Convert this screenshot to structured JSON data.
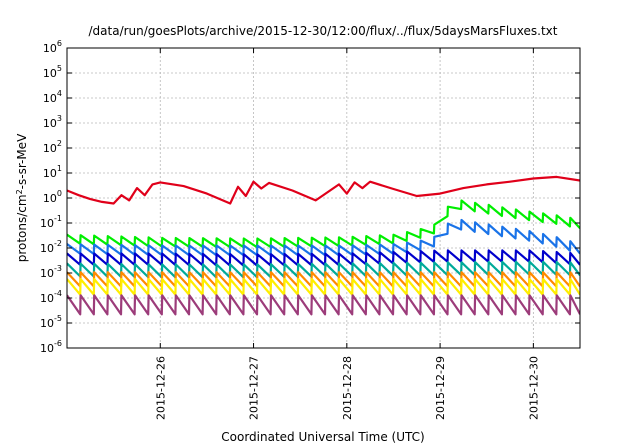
{
  "chart_data": {
    "type": "line",
    "title": "/data/run/goesPlots/archive/2015-12-30/12:00/flux/../flux/5daysMarsFluxes.txt",
    "xlabel": "Coordinated Universal Time (UTC)",
    "ylabel_parts": [
      "protons/cm",
      "2",
      "-s-sr-MeV"
    ],
    "y_scale": "log",
    "ylim": [
      1e-06,
      1000000.0
    ],
    "y_ticks": [
      {
        "base": "10",
        "exp": "-6",
        "value": 1e-06
      },
      {
        "base": "10",
        "exp": "-5",
        "value": 1e-05
      },
      {
        "base": "10",
        "exp": "-4",
        "value": 0.0001
      },
      {
        "base": "10",
        "exp": "-3",
        "value": 0.001
      },
      {
        "base": "10",
        "exp": "-2",
        "value": 0.01
      },
      {
        "base": "10",
        "exp": "-1",
        "value": 0.1
      },
      {
        "base": "10",
        "exp": "0",
        "value": 1
      },
      {
        "base": "10",
        "exp": "1",
        "value": 10
      },
      {
        "base": "10",
        "exp": "2",
        "value": 100
      },
      {
        "base": "10",
        "exp": "3",
        "value": 1000
      },
      {
        "base": "10",
        "exp": "4",
        "value": 10000
      },
      {
        "base": "10",
        "exp": "5",
        "value": 100000
      },
      {
        "base": "10",
        "exp": "6",
        "value": 1000000
      }
    ],
    "xlim": [
      "2015-12-25T00:00",
      "2015-12-30T12:00"
    ],
    "x_ticks": [
      "2015-12-26",
      "2015-12-27",
      "2015-12-28",
      "2015-12-29",
      "2015-12-30"
    ],
    "grid": true,
    "legend": "none",
    "series": [
      {
        "color": "#e0001a",
        "width": 2.2,
        "x": [
          "2015-12-25T00:00",
          "2015-12-25T03:00",
          "2015-12-25T06:00",
          "2015-12-25T09:00",
          "2015-12-25T12:00",
          "2015-12-25T14:00",
          "2015-12-25T16:00",
          "2015-12-25T18:00",
          "2015-12-25T20:00",
          "2015-12-25T22:00",
          "2015-12-26T00:00",
          "2015-12-26T06:00",
          "2015-12-26T12:00",
          "2015-12-26T18:00",
          "2015-12-26T20:00",
          "2015-12-26T22:00",
          "2015-12-27T00:00",
          "2015-12-27T02:00",
          "2015-12-27T04:00",
          "2015-12-27T10:00",
          "2015-12-27T16:00",
          "2015-12-27T22:00",
          "2015-12-28T00:00",
          "2015-12-28T02:00",
          "2015-12-28T04:00",
          "2015-12-28T06:00",
          "2015-12-28T12:00",
          "2015-12-28T18:00",
          "2015-12-29T00:00",
          "2015-12-29T06:00",
          "2015-12-29T12:00",
          "2015-12-29T18:00",
          "2015-12-30T00:00",
          "2015-12-30T06:00",
          "2015-12-30T12:00"
        ],
        "y": [
          2.0,
          1.3,
          0.9,
          0.7,
          0.6,
          1.3,
          0.8,
          2.5,
          1.3,
          3.5,
          4.2,
          3.0,
          1.5,
          0.6,
          2.8,
          1.2,
          4.5,
          2.4,
          4.0,
          2.0,
          0.8,
          3.5,
          1.5,
          4.2,
          2.5,
          4.5,
          2.3,
          1.2,
          1.5,
          2.5,
          3.5,
          4.5,
          6.0,
          7.0,
          5.0
        ]
      },
      {
        "color": "#00ee00",
        "width": 2.2,
        "x": [
          "2015-12-25T00:00",
          "2015-12-26T00:00",
          "2015-12-27T00:00",
          "2015-12-28T00:00",
          "2015-12-28T12:00",
          "2015-12-28T18:00",
          "2015-12-29T00:00",
          "2015-12-29T03:00",
          "2015-12-29T06:00",
          "2015-12-29T12:00",
          "2015-12-29T18:00",
          "2015-12-30T00:00",
          "2015-12-30T06:00",
          "2015-12-30T12:00"
        ],
        "y": [
          0.02,
          0.015,
          0.014,
          0.016,
          0.02,
          0.03,
          0.06,
          0.55,
          0.45,
          0.32,
          0.22,
          0.16,
          0.12,
          0.08
        ],
        "amp": 1.7,
        "period_h": 3.5
      },
      {
        "color": "#1a73e8",
        "width": 2.2,
        "x": [
          "2015-12-25T00:00",
          "2015-12-26T00:00",
          "2015-12-27T00:00",
          "2015-12-28T00:00",
          "2015-12-28T12:00",
          "2015-12-28T18:00",
          "2015-12-29T00:00",
          "2015-12-29T03:00",
          "2015-12-29T06:00",
          "2015-12-29T12:00",
          "2015-12-29T18:00",
          "2015-12-30T00:00",
          "2015-12-30T06:00",
          "2015-12-30T12:00"
        ],
        "y": [
          0.008,
          0.007,
          0.007,
          0.007,
          0.008,
          0.01,
          0.018,
          0.09,
          0.07,
          0.05,
          0.035,
          0.025,
          0.015,
          0.008
        ],
        "amp": 1.8,
        "period_h": 3.5
      },
      {
        "color": "#0000cc",
        "width": 2.2,
        "x": [
          "2015-12-25T00:00",
          "2015-12-26T00:00",
          "2015-12-27T00:00",
          "2015-12-28T00:00",
          "2015-12-29T00:00",
          "2015-12-30T00:00",
          "2015-12-30T12:00"
        ],
        "y": [
          0.003,
          0.003,
          0.0028,
          0.003,
          0.004,
          0.004,
          0.003
        ],
        "amp": 2.0,
        "period_h": 3.5
      },
      {
        "color": "#00aa99",
        "width": 2.2,
        "x": [
          "2015-12-25T00:00",
          "2015-12-26T00:00",
          "2015-12-27T00:00",
          "2015-12-28T00:00",
          "2015-12-29T00:00",
          "2015-12-30T00:00",
          "2015-12-30T12:00"
        ],
        "y": [
          0.0011,
          0.001,
          0.001,
          0.0011,
          0.0012,
          0.0013,
          0.0012
        ],
        "amp": 2.2,
        "period_h": 3.5
      },
      {
        "color": "#ff8a00",
        "width": 2.2,
        "x": [
          "2015-12-25T00:00",
          "2015-12-30T12:00"
        ],
        "y": [
          0.00045,
          0.00045
        ],
        "amp": 2.4,
        "period_h": 3.5
      },
      {
        "color": "#ffee00",
        "width": 2.2,
        "x": [
          "2015-12-25T00:00",
          "2015-12-30T12:00"
        ],
        "y": [
          0.00022,
          0.00022
        ],
        "amp": 2.6,
        "period_h": 3.5
      },
      {
        "color": "#9c3c7a",
        "width": 2.2,
        "x": [
          "2015-12-25T00:00",
          "2015-12-30T12:00"
        ],
        "y": [
          4e-05,
          4e-05
        ],
        "amp": 3.2,
        "period_h": 3.5
      }
    ]
  }
}
